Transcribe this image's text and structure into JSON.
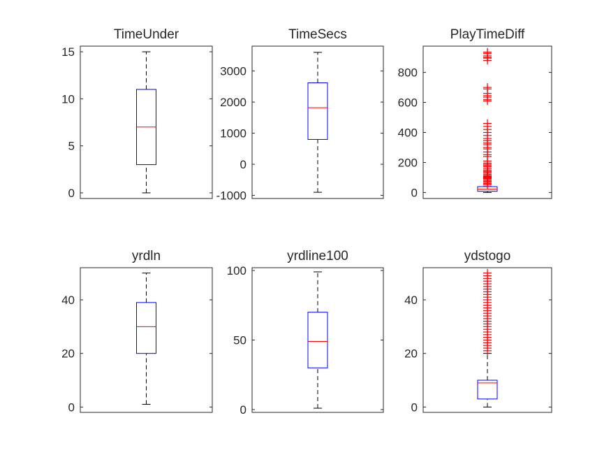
{
  "figure": {
    "background": "#ffffff"
  },
  "colors": {
    "box": "#0000ff",
    "median": "#ff0000",
    "whisker": "#000000",
    "outlier": "#ff0000",
    "axes": "#262626"
  },
  "chart_data": [
    {
      "type": "box",
      "title": "TimeUnder",
      "ylim": [
        -0.6,
        15.6
      ],
      "yticks": [
        0,
        5,
        10,
        15
      ],
      "yticklabels": [
        "0",
        "5",
        "10",
        "15"
      ],
      "box": {
        "lower_whisker": 0,
        "q1": 3,
        "median": 7,
        "q3": 11,
        "upper_whisker": 15
      },
      "outliers": []
    },
    {
      "type": "box",
      "title": "TimeSecs",
      "ylim": [
        -1100,
        3800
      ],
      "yticks": [
        -1000,
        0,
        1000,
        2000,
        3000
      ],
      "yticklabels": [
        "-1000",
        "0",
        "1000",
        "2000",
        "3000"
      ],
      "box": {
        "lower_whisker": -900,
        "q1": 800,
        "median": 1820,
        "q3": 2620,
        "upper_whisker": 3600
      },
      "outliers": []
    },
    {
      "type": "box",
      "title": "PlayTimeDiff",
      "ylim": [
        -40,
        975
      ],
      "yticks": [
        0,
        200,
        400,
        600,
        800
      ],
      "yticklabels": [
        "0",
        "200",
        "400",
        "600",
        "800"
      ],
      "box": {
        "lower_whisker": 0,
        "q1": 8,
        "median": 22,
        "q3": 39,
        "upper_whisker": 40
      },
      "outliers": [
        52,
        60,
        68,
        75,
        82,
        90,
        95,
        100,
        104,
        108,
        112,
        120,
        128,
        136,
        142,
        150,
        160,
        172,
        180,
        188,
        196,
        210,
        240,
        252,
        270,
        290,
        300,
        318,
        330,
        345,
        360,
        380,
        400,
        420,
        440,
        460,
        610,
        620,
        635,
        645,
        660,
        690,
        700,
        880,
        895,
        900,
        910,
        925,
        935
      ]
    },
    {
      "type": "box",
      "title": "yrdln",
      "ylim": [
        -2,
        52
      ],
      "yticks": [
        0,
        20,
        40
      ],
      "yticklabels": [
        "0",
        "20",
        "40"
      ],
      "box": {
        "lower_whisker": 1,
        "q1": 20,
        "median": 30,
        "q3": 39,
        "upper_whisker": 50
      },
      "outliers": []
    },
    {
      "type": "box",
      "title": "yrdline100",
      "ylim": [
        -2,
        102
      ],
      "yticks": [
        0,
        50,
        100
      ],
      "yticklabels": [
        "0",
        "50",
        "100"
      ],
      "box": {
        "lower_whisker": 1,
        "q1": 30,
        "median": 49,
        "q3": 70,
        "upper_whisker": 99
      },
      "outliers": []
    },
    {
      "type": "box",
      "title": "ydstogo",
      "ylim": [
        -2,
        52
      ],
      "yticks": [
        0,
        20,
        40
      ],
      "yticklabels": [
        "0",
        "20",
        "40"
      ],
      "box": {
        "lower_whisker": 0,
        "q1": 3,
        "median": 9,
        "q3": 10,
        "upper_whisker": 20
      },
      "outliers": [
        21,
        22,
        23,
        24,
        25,
        26,
        27,
        28,
        29,
        30,
        31,
        32,
        33,
        34,
        35,
        36,
        37,
        38,
        39,
        40,
        41,
        42,
        43,
        44,
        45,
        46,
        47,
        48,
        49,
        50
      ]
    }
  ]
}
